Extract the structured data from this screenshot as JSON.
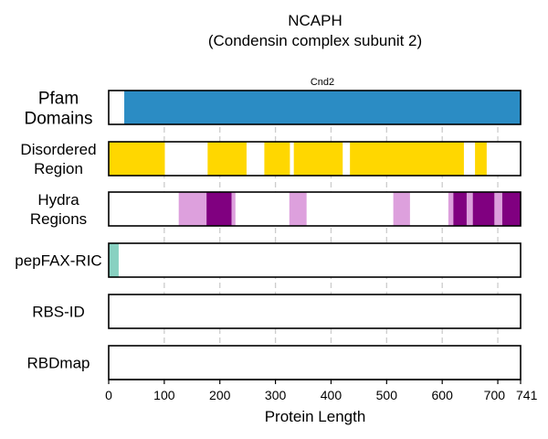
{
  "chart_data": {
    "type": "bar",
    "title": "NCAPH",
    "subtitle": "(Condensin complex subunit 2)",
    "xlabel": "Protein Length",
    "xlim": [
      0,
      741
    ],
    "xticks": [
      0,
      100,
      200,
      300,
      400,
      500,
      600,
      700,
      741
    ],
    "grid": "dashed vertical at 100-unit intervals",
    "tracks": [
      {
        "label": [
          "Pfam",
          "Domains"
        ],
        "segments": [
          {
            "start": 28,
            "end": 741,
            "color": "#2b8cc4",
            "label": "Cnd2"
          }
        ]
      },
      {
        "label": [
          "Disordered",
          "Region"
        ],
        "segments": [
          {
            "start": 0,
            "end": 101,
            "color": "#ffd700"
          },
          {
            "start": 178,
            "end": 248,
            "color": "#ffd700"
          },
          {
            "start": 280,
            "end": 326,
            "color": "#ffd700"
          },
          {
            "start": 333,
            "end": 421,
            "color": "#ffd700"
          },
          {
            "start": 434,
            "end": 639,
            "color": "#ffd700"
          },
          {
            "start": 659,
            "end": 680,
            "color": "#ffd700"
          }
        ]
      },
      {
        "label": [
          "Hydra",
          "Regions"
        ],
        "segments": [
          {
            "start": 126,
            "end": 176,
            "color": "#dda0dd"
          },
          {
            "start": 176,
            "end": 221,
            "color": "#800080"
          },
          {
            "start": 221,
            "end": 228,
            "color": "#dda0dd"
          },
          {
            "start": 325,
            "end": 356,
            "color": "#dda0dd"
          },
          {
            "start": 512,
            "end": 542,
            "color": "#dda0dd"
          },
          {
            "start": 611,
            "end": 620,
            "color": "#dda0dd"
          },
          {
            "start": 620,
            "end": 644,
            "color": "#800080"
          },
          {
            "start": 644,
            "end": 655,
            "color": "#dda0dd"
          },
          {
            "start": 655,
            "end": 694,
            "color": "#800080"
          },
          {
            "start": 694,
            "end": 708,
            "color": "#dda0dd"
          },
          {
            "start": 708,
            "end": 741,
            "color": "#800080"
          }
        ]
      },
      {
        "label": [
          "pepFAX-RIC"
        ],
        "segments": [
          {
            "start": 0,
            "end": 18,
            "color": "#88d1c1"
          }
        ]
      },
      {
        "label": [
          "RBS-ID"
        ],
        "segments": []
      },
      {
        "label": [
          "RBDmap"
        ],
        "segments": []
      }
    ]
  }
}
